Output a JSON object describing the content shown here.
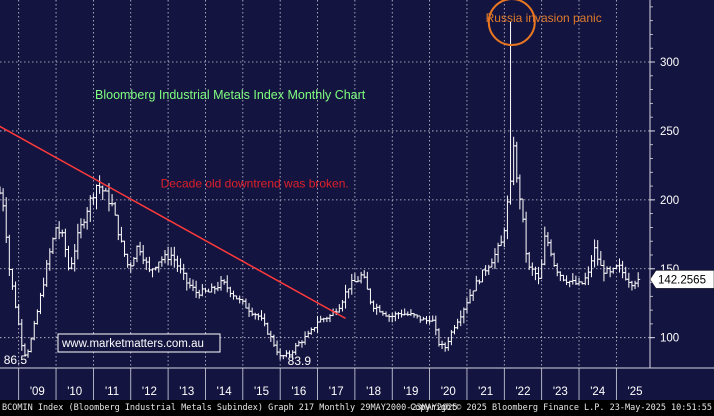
{
  "chart_data": {
    "type": "ohlc",
    "title": "Bloomberg Industrial Metals Index Monthly Chart",
    "last_value_label": "142.2565",
    "ylim": [
      78,
      345
    ],
    "yticks": [
      {
        "value": 100,
        "label": "100"
      },
      {
        "value": 150,
        "label": "150"
      },
      {
        "value": 200,
        "label": "200"
      },
      {
        "value": 250,
        "label": "250"
      },
      {
        "value": 300,
        "label": "300"
      }
    ],
    "xlim": [
      2008.5,
      2025.9
    ],
    "xticks": [
      {
        "value": 2009.5,
        "label": "'09"
      },
      {
        "value": 2010.5,
        "label": "'10"
      },
      {
        "value": 2011.5,
        "label": "'11"
      },
      {
        "value": 2012.5,
        "label": "'12"
      },
      {
        "value": 2013.5,
        "label": "'13"
      },
      {
        "value": 2014.5,
        "label": "'14"
      },
      {
        "value": 2015.5,
        "label": "'15"
      },
      {
        "value": 2016.5,
        "label": "'16"
      },
      {
        "value": 2017.5,
        "label": "'17"
      },
      {
        "value": 2018.5,
        "label": "'18"
      },
      {
        "value": 2019.5,
        "label": "'19"
      },
      {
        "value": 2020.5,
        "label": "'20"
      },
      {
        "value": 2021.5,
        "label": "'21"
      },
      {
        "value": 2022.5,
        "label": "'22"
      },
      {
        "value": 2023.5,
        "label": "'23"
      },
      {
        "value": 2024.5,
        "label": "'24"
      },
      {
        "value": 2025.5,
        "label": "'25"
      }
    ],
    "anchors": [
      [
        2008.5,
        205
      ],
      [
        2008.6,
        196
      ],
      [
        2008.75,
        150
      ],
      [
        2008.95,
        118
      ],
      [
        2009.1,
        93
      ],
      [
        2009.2,
        86.5
      ],
      [
        2009.35,
        100
      ],
      [
        2009.55,
        125
      ],
      [
        2009.8,
        158
      ],
      [
        2010.0,
        180
      ],
      [
        2010.2,
        172
      ],
      [
        2010.35,
        148
      ],
      [
        2010.6,
        175
      ],
      [
        2010.85,
        195
      ],
      [
        2011.1,
        212
      ],
      [
        2011.3,
        205
      ],
      [
        2011.5,
        196
      ],
      [
        2011.75,
        168
      ],
      [
        2011.95,
        150
      ],
      [
        2012.2,
        168
      ],
      [
        2012.35,
        158
      ],
      [
        2012.5,
        148
      ],
      [
        2012.75,
        156
      ],
      [
        2013.1,
        160
      ],
      [
        2013.5,
        140
      ],
      [
        2013.75,
        133
      ],
      [
        2014.1,
        133
      ],
      [
        2014.45,
        140
      ],
      [
        2014.6,
        136
      ],
      [
        2014.9,
        127
      ],
      [
        2015.2,
        120
      ],
      [
        2015.45,
        115
      ],
      [
        2015.75,
        100
      ],
      [
        2016.0,
        86
      ],
      [
        2016.25,
        88
      ],
      [
        2016.5,
        96
      ],
      [
        2016.8,
        103
      ],
      [
        2017.0,
        112
      ],
      [
        2017.35,
        116
      ],
      [
        2017.6,
        124
      ],
      [
        2017.85,
        138
      ],
      [
        2018.05,
        141
      ],
      [
        2018.2,
        146
      ],
      [
        2018.45,
        124
      ],
      [
        2018.7,
        120
      ],
      [
        2018.95,
        115
      ],
      [
        2019.2,
        118
      ],
      [
        2019.55,
        116
      ],
      [
        2019.9,
        112
      ],
      [
        2020.05,
        115
      ],
      [
        2020.25,
        96
      ],
      [
        2020.4,
        92
      ],
      [
        2020.65,
        108
      ],
      [
        2020.85,
        118
      ],
      [
        2021.15,
        135
      ],
      [
        2021.45,
        148
      ],
      [
        2021.75,
        160
      ],
      [
        2021.95,
        170
      ],
      [
        2022.1,
        200
      ],
      [
        2022.2,
        215
      ],
      [
        2022.25,
        242
      ],
      [
        2022.33,
        214
      ],
      [
        2022.45,
        198
      ],
      [
        2022.55,
        168
      ],
      [
        2022.65,
        150
      ],
      [
        2022.8,
        148
      ],
      [
        2022.95,
        140
      ],
      [
        2023.08,
        172
      ],
      [
        2023.2,
        168
      ],
      [
        2023.35,
        152
      ],
      [
        2023.55,
        144
      ],
      [
        2023.8,
        140
      ],
      [
        2024.05,
        138
      ],
      [
        2024.25,
        146
      ],
      [
        2024.4,
        165
      ],
      [
        2024.6,
        150
      ],
      [
        2024.85,
        146
      ],
      [
        2025.05,
        152
      ],
      [
        2025.2,
        146
      ],
      [
        2025.4,
        140
      ],
      [
        2025.55,
        142.2565
      ]
    ],
    "trendline": {
      "from": [
        2008.45,
        254
      ],
      "to": [
        2017.75,
        114
      ]
    },
    "annotations": [
      {
        "text": "Russia invasion panic",
        "color": "#e07a2a",
        "x": 2021.5,
        "y": 329
      },
      {
        "text": "Decade old downtrend was broken.",
        "color": "#e0202a",
        "x": 2012.8,
        "y": 209
      },
      {
        "text": "86.5",
        "color": "#ffffff",
        "x": 2008.6,
        "y": 81
      },
      {
        "text": "83.9",
        "color": "#ffffff",
        "x": 2016.2,
        "y": 80
      }
    ],
    "spike_circle": {
      "x": 2022.2,
      "y": 329
    },
    "watermark": "www.marketmatters.com.au",
    "grid": true,
    "colors": {
      "background": "#141440",
      "grid": "#c8c8d8",
      "bars": "#ffffff",
      "trendline": "#ff3a3a",
      "title": "#7fff7f",
      "circle": "#e87722",
      "last_label_bg": "#ffffff"
    }
  },
  "footer": {
    "left": "BCOMIN Index (Bloomberg Industrial Metals Subindex) Graph 217  Monthly 29MAY2000-23MAY2025",
    "right": "Copyright© 2025 Bloomberg Finance L.P.   23-May-2025 10:51:55"
  }
}
